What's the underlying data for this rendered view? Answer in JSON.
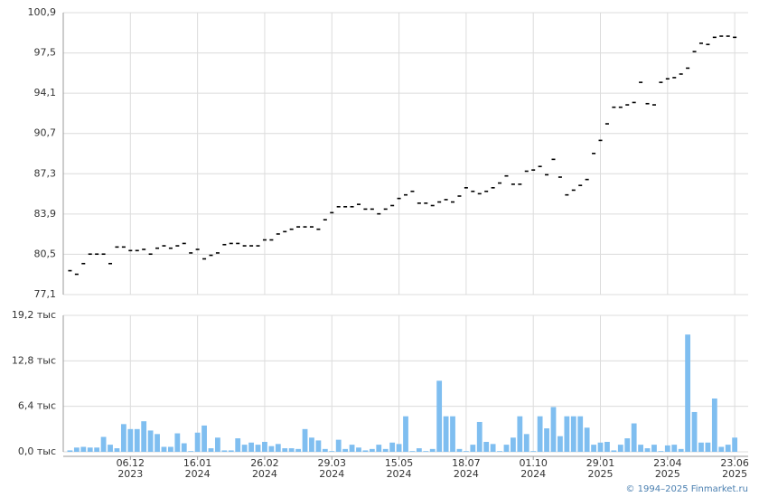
{
  "chart_data": [
    {
      "type": "price-marks",
      "color": "#000000",
      "grid": true,
      "values": [
        79.1,
        78.8,
        79.7,
        80.5,
        80.5,
        80.5,
        79.7,
        81.1,
        81.1,
        80.8,
        80.8,
        80.9,
        80.5,
        81.0,
        81.2,
        81.0,
        81.2,
        81.4,
        80.6,
        80.9,
        80.1,
        80.4,
        80.6,
        81.3,
        81.4,
        81.4,
        81.2,
        81.2,
        81.2,
        81.7,
        81.7,
        82.2,
        82.4,
        82.6,
        82.8,
        82.8,
        82.8,
        82.6,
        83.4,
        84.0,
        84.5,
        84.5,
        84.5,
        84.7,
        84.3,
        84.3,
        83.9,
        84.3,
        84.6,
        85.2,
        85.5,
        85.8,
        84.8,
        84.8,
        84.6,
        84.9,
        85.1,
        84.9,
        85.4,
        86.1,
        85.8,
        85.6,
        85.8,
        86.1,
        86.5,
        87.1,
        86.4,
        86.4,
        87.5,
        87.6,
        87.9,
        87.2,
        88.5,
        87.0,
        85.5,
        85.9,
        86.3,
        86.8,
        89.0,
        90.1,
        91.5,
        92.9,
        92.9,
        93.1,
        93.3,
        95.0,
        93.2,
        93.1,
        95.0,
        95.3,
        95.4,
        95.7,
        96.2,
        97.6,
        98.3,
        98.2,
        98.8,
        98.9,
        98.9,
        98.8
      ],
      "ylim": [
        77.1,
        100.9
      ],
      "yticks": [
        {
          "value": 77.1,
          "label": "77,1"
        },
        {
          "value": 80.5,
          "label": "80,5"
        },
        {
          "value": 83.9,
          "label": "83,9"
        },
        {
          "value": 87.3,
          "label": "87,3"
        },
        {
          "value": 90.7,
          "label": "90,7"
        },
        {
          "value": 94.1,
          "label": "94,1"
        },
        {
          "value": 97.5,
          "label": "97,5"
        },
        {
          "value": 100.9,
          "label": "100,9"
        }
      ]
    },
    {
      "type": "bar",
      "color": "#7fbef0",
      "grid": true,
      "values": [
        0.2,
        0.6,
        0.7,
        0.6,
        0.6,
        2.1,
        1.0,
        0.5,
        3.9,
        3.2,
        3.2,
        4.3,
        3.0,
        2.5,
        0.7,
        0.7,
        2.6,
        1.2,
        0.1,
        2.7,
        3.7,
        0.5,
        2.0,
        0.2,
        0.2,
        1.9,
        1.0,
        1.3,
        1.0,
        1.4,
        0.8,
        1.1,
        0.5,
        0.5,
        0.4,
        3.2,
        2.0,
        1.6,
        0.4,
        0.1,
        1.7,
        0.4,
        1.0,
        0.6,
        0.2,
        0.4,
        1.0,
        0.4,
        1.3,
        1.1,
        5.0,
        0.1,
        0.5,
        0.1,
        0.4,
        10.0,
        5.0,
        5.0,
        0.4,
        0.1,
        1.0,
        4.2,
        1.4,
        1.1,
        0.1,
        1.0,
        2.0,
        5.0,
        2.5,
        0.1,
        5.0,
        3.3,
        6.3,
        2.2,
        5.0,
        5.0,
        5.0,
        3.4,
        1.0,
        1.3,
        1.4,
        0.2,
        1.0,
        1.9,
        4.0,
        1.0,
        0.5,
        1.0,
        0.1,
        0.9,
        1.0,
        0.4,
        16.5,
        5.6,
        1.3,
        1.3,
        7.5,
        0.7,
        1.0,
        2.0
      ],
      "ylim": [
        0,
        19.2
      ],
      "yticks": [
        {
          "value": 0,
          "label": "0,0 тыс"
        },
        {
          "value": 6.4,
          "label": "6,4 тыс"
        },
        {
          "value": 12.8,
          "label": "12,8 тыс"
        },
        {
          "value": 19.2,
          "label": "19,2 тыс"
        }
      ],
      "xlim": [
        -1,
        101
      ],
      "xticks": [
        {
          "value": 9,
          "label": "06.12",
          "year": "2023"
        },
        {
          "value": 19,
          "label": "16.01",
          "year": "2024"
        },
        {
          "value": 29,
          "label": "26.02",
          "year": "2024"
        },
        {
          "value": 39,
          "label": "29.03",
          "year": "2024"
        },
        {
          "value": 49,
          "label": "15.05",
          "year": "2024"
        },
        {
          "value": 59,
          "label": "18.07",
          "year": "2024"
        },
        {
          "value": 69,
          "label": "01.10",
          "year": "2024"
        },
        {
          "value": 79,
          "label": "29.01",
          "year": "2025"
        },
        {
          "value": 89,
          "label": "23.04",
          "year": "2025"
        },
        {
          "value": 99,
          "label": "23.06",
          "year": "2025"
        }
      ]
    }
  ],
  "footer": "© 1994–2025 Finmarket.ru"
}
